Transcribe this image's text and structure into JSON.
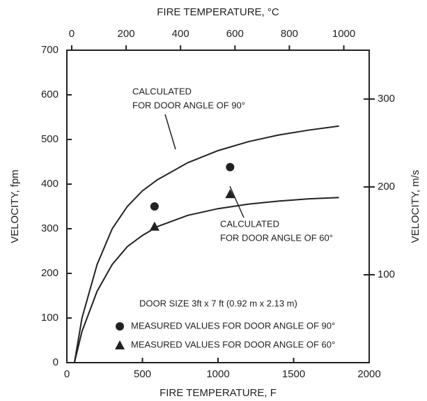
{
  "chart_data": {
    "type": "line",
    "x_title": "FIRE TEMPERATURE, F",
    "x2_title": "FIRE TEMPERATURE, °C",
    "y_title": "VELOCITY, fpm",
    "y2_title": "VELOCITY, m/s",
    "xlim": [
      0,
      2000
    ],
    "xticks": [
      0,
      500,
      1000,
      1500,
      2000
    ],
    "x2lim": [
      -17.8,
      1093.3
    ],
    "x2ticks": [
      0,
      200,
      400,
      600,
      800,
      1000
    ],
    "ylim": [
      0,
      700
    ],
    "yticks": [
      0,
      100,
      200,
      300,
      400,
      500,
      600,
      700
    ],
    "y2lim": [
      0,
      355.6
    ],
    "y2ticks": [
      100,
      200,
      300
    ],
    "series": [
      {
        "kind": "line",
        "color": "#222",
        "x": [
          50,
          100,
          200,
          300,
          400,
          500,
          600,
          800,
          1000,
          1200,
          1400,
          1600,
          1800
        ],
        "values": [
          0,
          100,
          220,
          300,
          350,
          385,
          410,
          448,
          475,
          495,
          510,
          521,
          530
        ]
      },
      {
        "kind": "line",
        "color": "#222",
        "x": [
          50,
          100,
          200,
          300,
          400,
          500,
          600,
          800,
          1000,
          1200,
          1400,
          1600,
          1800
        ],
        "values": [
          0,
          70,
          160,
          220,
          260,
          285,
          305,
          330,
          345,
          355,
          362,
          367,
          370
        ]
      },
      {
        "kind": "scatter",
        "marker": "circle",
        "color": "#222",
        "name": "MEASURED VALUES FOR DOOR ANGLE OF 90°",
        "x": [
          580,
          1080
        ],
        "values": [
          350,
          438
        ]
      },
      {
        "kind": "scatter",
        "marker": "triangle",
        "color": "#222",
        "name": "MEASURED VALUES FOR DOOR ANGLE OF 60°",
        "x": [
          580,
          1080
        ],
        "values": [
          305,
          378
        ]
      }
    ],
    "annotations": [
      "CALCULATED",
      "FOR DOOR ANGLE OF 90°",
      "CALCULATED",
      "FOR DOOR ANGLE OF 60°",
      "DOOR SIZE 3ft x 7 ft (0.92 m x 2.13 m)"
    ]
  }
}
